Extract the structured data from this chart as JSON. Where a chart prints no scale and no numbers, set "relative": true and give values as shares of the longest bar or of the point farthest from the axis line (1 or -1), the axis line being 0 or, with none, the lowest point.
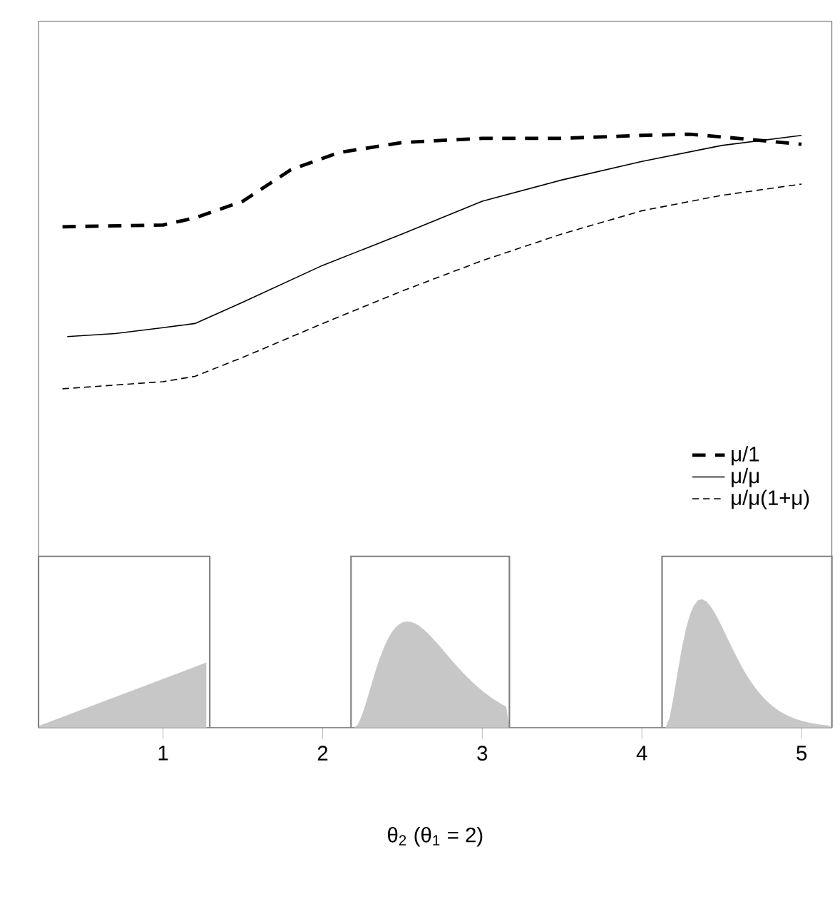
{
  "chart_data": {
    "type": "line",
    "relative": true,
    "xlabel": "θ$_{2}$    (θ$_{1}$ = 2)",
    "x": [
      0.37,
      1.0,
      1.2,
      1.5,
      1.8,
      2.1,
      2.5,
      3.0,
      3.5,
      4.0,
      4.3,
      4.6,
      5.0
    ],
    "xlim": [
      0.22,
      5.19
    ],
    "xticks": [
      1,
      2,
      3,
      4,
      5
    ],
    "legend": "bottom right",
    "grid": false,
    "marker": "none",
    "series": [
      {
        "name": "μ/1",
        "color": "#000000",
        "line_style": "dashed",
        "values": [
          0.844,
          0.847,
          0.859,
          0.887,
          0.94,
          0.969,
          0.986,
          0.993,
          0.993,
          0.998,
          1.0,
          0.993,
          0.983
        ]
      },
      {
        "name": "μ/μ",
        "color": "#000000",
        "line_style": "solid",
        "x": [
          0.4,
          0.7,
          1.0,
          1.2,
          1.5,
          2.0,
          2.5,
          3.0,
          3.5,
          4.0,
          4.5,
          5.0
        ],
        "values": [
          0.659,
          0.664,
          0.674,
          0.681,
          0.717,
          0.779,
          0.832,
          0.887,
          0.923,
          0.954,
          0.981,
          0.998
        ]
      },
      {
        "name": "μ/μ(1+μ)",
        "color": "#000000",
        "line_style": "dashed",
        "x": [
          0.37,
          1.0,
          1.2,
          1.5,
          2.0,
          2.5,
          3.0,
          3.5,
          4.0,
          4.5,
          5.0
        ],
        "values": [
          0.571,
          0.583,
          0.592,
          0.624,
          0.681,
          0.736,
          0.787,
          0.832,
          0.871,
          0.897,
          0.916
        ]
      }
    ]
  }
}
